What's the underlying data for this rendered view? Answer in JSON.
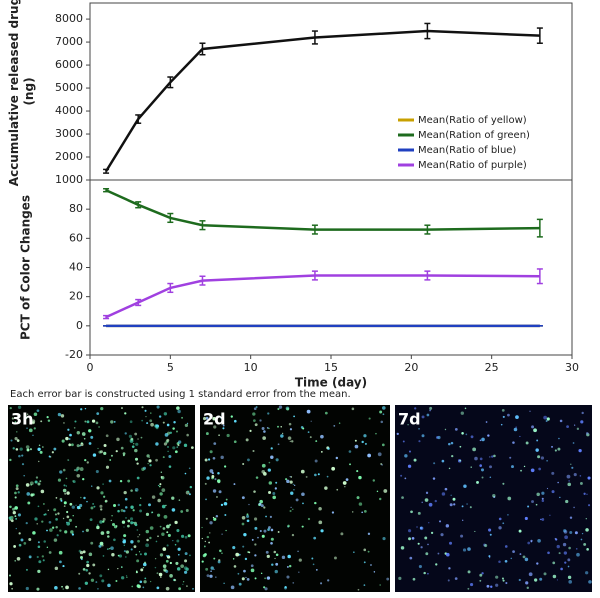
{
  "chart_data": [
    {
      "type": "line",
      "ylabel": [
        "Accumulative released drug",
        "(ng)"
      ],
      "x": [
        1,
        3,
        5,
        7,
        14,
        21,
        28
      ],
      "xlim": [
        0,
        30
      ],
      "ylim": [
        1000,
        8700
      ],
      "yticks": [
        1000,
        2000,
        3000,
        4000,
        5000,
        6000,
        7000,
        8000
      ],
      "series": [
        {
          "color": "#111111",
          "values": [
            1380,
            3650,
            5250,
            6700,
            7200,
            7480,
            7280
          ],
          "errors": [
            80,
            180,
            230,
            250,
            280,
            330,
            330
          ]
        }
      ]
    },
    {
      "type": "line",
      "ylabel": "PCT of Color Changes",
      "xlabel": "Time (day)",
      "x": [
        1,
        3,
        5,
        7,
        14,
        21,
        28
      ],
      "xlim": [
        0,
        30
      ],
      "xticks": [
        0,
        5,
        10,
        15,
        20,
        25,
        30
      ],
      "ylim": [
        -20,
        100
      ],
      "yticks": [
        -20,
        0,
        20,
        40,
        60,
        80
      ],
      "series": [
        {
          "name": "Mean(Ratio of yellow)",
          "color": "#c8a000",
          "values": [
            0,
            0,
            0,
            0,
            0,
            0,
            0
          ],
          "errors": [
            0,
            0,
            0,
            0,
            0,
            0,
            0
          ]
        },
        {
          "name": "Mean(Ration of green)",
          "color": "#1e6b1e",
          "values": [
            93,
            83,
            74,
            69,
            66,
            66,
            67
          ],
          "errors": [
            1,
            2,
            3,
            3,
            3,
            3,
            6
          ]
        },
        {
          "name": "Mean(Ratio of blue)",
          "color": "#2040c0",
          "values": [
            0,
            0,
            0,
            0,
            0,
            0,
            0
          ],
          "errors": [
            0,
            0,
            0,
            0,
            0,
            0,
            0
          ]
        },
        {
          "name": "Mean(Ratio of purple)",
          "color": "#a040e0",
          "values": [
            6,
            16,
            26,
            31,
            34.5,
            34.5,
            34
          ],
          "errors": [
            1,
            2,
            3,
            3,
            3,
            3,
            5
          ]
        }
      ]
    }
  ],
  "note": "Each error bar is constructed using 1 standard error from the mean.",
  "panels": [
    {
      "label": "3h"
    },
    {
      "label": "2d"
    },
    {
      "label": "7d"
    }
  ]
}
